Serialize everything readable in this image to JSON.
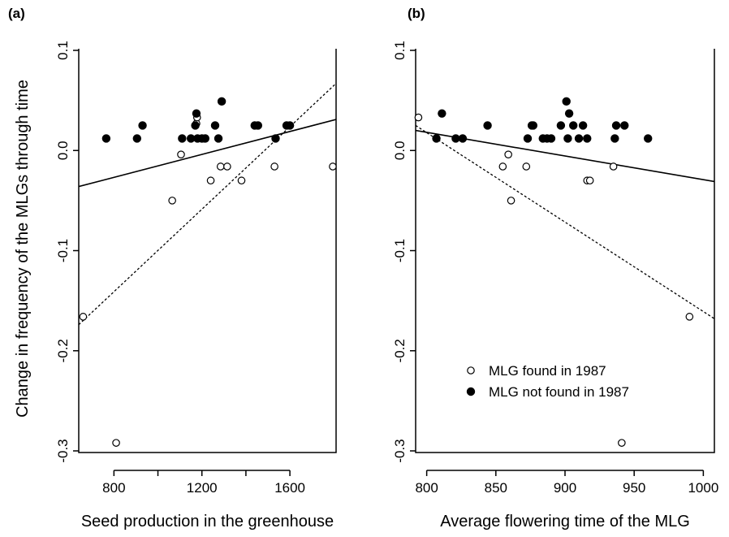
{
  "ylabel": "Change in frequency of the MLGs  through time",
  "legend": {
    "entries": [
      {
        "label": "MLG found in 1987",
        "marker": "open-circle"
      },
      {
        "label": "MLG not found in 1987",
        "marker": "filled-circle"
      }
    ],
    "placement": "bottom-left of panel b"
  },
  "chart_data": [
    {
      "type": "scatter",
      "panel": "(a)",
      "xlabel": "Seed production in the greenhouse",
      "xlim": [
        640,
        1810
      ],
      "ylim": [
        -0.3,
        0.1
      ],
      "xticks": [
        800,
        1200,
        1600
      ],
      "xtick_labels": [
        "800",
        "1200",
        "1600"
      ],
      "xticks_minor": [
        1000,
        1400
      ],
      "yticks": [
        -0.3,
        -0.2,
        -0.1,
        0.0,
        0.1
      ],
      "ytick_labels": [
        "-0.3",
        "-0.2",
        "-0.1",
        "0.0",
        "0.1"
      ],
      "series": [
        {
          "name": "MLG found in 1987",
          "marker": "open",
          "x": [
            660,
            810,
            1065,
            1105,
            1175,
            1178,
            1240,
            1285,
            1315,
            1380,
            1530,
            1795
          ],
          "y": [
            -0.166,
            -0.292,
            -0.05,
            -0.004,
            0.027,
            0.033,
            -0.03,
            -0.016,
            -0.016,
            -0.03,
            -0.016,
            -0.016
          ]
        },
        {
          "name": "MLG not found in 1987",
          "marker": "filled",
          "x": [
            765,
            905,
            930,
            1110,
            1150,
            1170,
            1175,
            1180,
            1200,
            1215,
            1260,
            1275,
            1290,
            1440,
            1455,
            1535,
            1585,
            1600
          ],
          "y": [
            0.012,
            0.012,
            0.025,
            0.012,
            0.012,
            0.025,
            0.037,
            0.012,
            0.012,
            0.012,
            0.025,
            0.012,
            0.049,
            0.025,
            0.025,
            0.012,
            0.025,
            0.025
          ]
        }
      ],
      "fit_lines": [
        {
          "style": "solid",
          "x": [
            640,
            1810
          ],
          "y": [
            -0.036,
            0.031
          ]
        },
        {
          "style": "dashed",
          "x": [
            640,
            1810
          ],
          "y": [
            -0.174,
            0.067
          ]
        }
      ]
    },
    {
      "type": "scatter",
      "panel": "(b)",
      "xlabel": "Average flowering time of the MLG",
      "xlim": [
        792,
        1008
      ],
      "ylim": [
        -0.3,
        0.1
      ],
      "xticks": [
        800,
        850,
        900,
        950,
        1000
      ],
      "xtick_labels": [
        "800",
        "850",
        "900",
        "950",
        "1000"
      ],
      "yticks": [
        -0.3,
        -0.2,
        -0.1,
        0.0,
        0.1
      ],
      "ytick_labels": [
        "-0.3",
        "-0.2",
        "-0.1",
        "0.0",
        "0.1"
      ],
      "series": [
        {
          "name": "MLG found in 1987",
          "marker": "open",
          "x": [
            794,
            855,
            859,
            861,
            872,
            916,
            918,
            935,
            941,
            990
          ],
          "y": [
            0.033,
            -0.016,
            -0.004,
            -0.05,
            -0.016,
            -0.03,
            -0.03,
            -0.016,
            -0.292,
            -0.166
          ]
        },
        {
          "name": "MLG not found in 1987",
          "marker": "filled",
          "x": [
            807,
            811,
            821,
            826,
            844,
            873,
            876,
            877,
            884,
            887,
            890,
            897,
            901,
            902,
            903,
            906,
            910,
            913,
            916,
            936,
            937,
            943,
            960
          ],
          "y": [
            0.012,
            0.037,
            0.012,
            0.012,
            0.025,
            0.012,
            0.025,
            0.025,
            0.012,
            0.012,
            0.012,
            0.025,
            0.049,
            0.012,
            0.037,
            0.025,
            0.012,
            0.025,
            0.012,
            0.012,
            0.025,
            0.025,
            0.012
          ]
        }
      ],
      "fit_lines": [
        {
          "style": "solid",
          "x": [
            792,
            1008
          ],
          "y": [
            0.02,
            -0.031
          ]
        },
        {
          "style": "dashed",
          "x": [
            792,
            1008
          ],
          "y": [
            0.025,
            -0.168
          ]
        }
      ]
    }
  ]
}
